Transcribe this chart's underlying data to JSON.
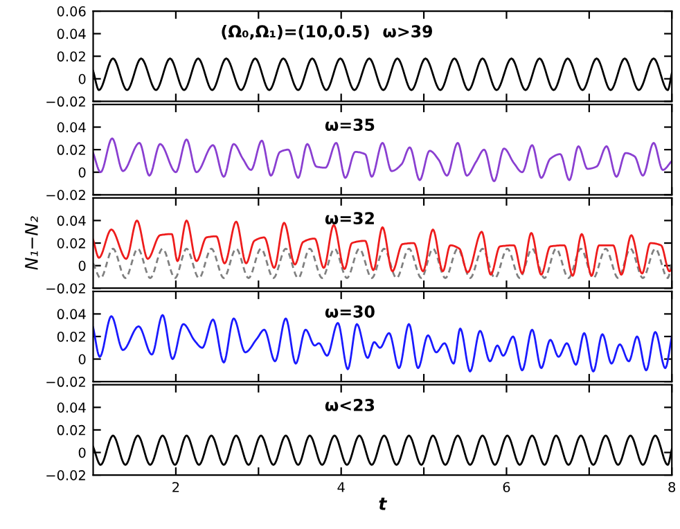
{
  "chart_data": [
    {
      "type": "line",
      "annotations": [
        "(Ω₀,Ω₁)=(10,0.5)",
        "ω>39"
      ],
      "xlim": [
        1,
        8
      ],
      "ylim": [
        -0.02,
        0.06
      ],
      "xticks": [
        2,
        {
          "value": 3,
          "label": null
        },
        4,
        {
          "value": 5,
          "label": null
        },
        6,
        {
          "value": 7,
          "label": null
        },
        8
      ],
      "yticks": [
        -0.02,
        0,
        0.02,
        0.04,
        0.06
      ],
      "tick_labels": "y",
      "series": [
        {
          "color": "#000000",
          "x": [
            1.0,
            1.07,
            1.24,
            1.41,
            1.58,
            1.76,
            1.93,
            2.1,
            2.27,
            2.44,
            2.61,
            2.79,
            2.96,
            3.13,
            3.3,
            3.48,
            3.65,
            3.82,
            3.99,
            4.16,
            4.34,
            4.51,
            4.68,
            4.85,
            5.02,
            5.2,
            5.37,
            5.54,
            5.71,
            5.88,
            6.06,
            6.23,
            6.4,
            6.57,
            6.74,
            6.92,
            7.09,
            7.26,
            7.43,
            7.6,
            7.78,
            7.95,
            8.0
          ],
          "values": [
            0.007,
            -0.01,
            0.018,
            -0.01,
            0.018,
            -0.01,
            0.018,
            -0.01,
            0.018,
            -0.01,
            0.018,
            -0.01,
            0.018,
            -0.01,
            0.018,
            -0.01,
            0.018,
            -0.01,
            0.018,
            -0.01,
            0.018,
            -0.01,
            0.018,
            -0.01,
            0.018,
            -0.01,
            0.018,
            -0.01,
            0.018,
            -0.01,
            0.018,
            -0.01,
            0.018,
            -0.01,
            0.018,
            -0.01,
            0.018,
            -0.01,
            0.018,
            -0.01,
            0.018,
            -0.01,
            0.005
          ]
        }
      ]
    },
    {
      "type": "line",
      "annotations": [
        "ω=35"
      ],
      "xlim": [
        1,
        8
      ],
      "ylim": [
        -0.02,
        0.06
      ],
      "xticks": [
        2,
        {
          "value": 3,
          "label": null
        },
        4,
        {
          "value": 5,
          "label": null
        },
        6,
        {
          "value": 7,
          "label": null
        },
        8
      ],
      "yticks": [
        -0.02,
        0,
        0.02,
        0.04
      ],
      "tick_labels": "y",
      "series": [
        {
          "color": "#8a3fd1",
          "x": [
            1.0,
            1.09,
            1.23,
            1.36,
            1.56,
            1.68,
            1.81,
            2.0,
            2.13,
            2.25,
            2.45,
            2.58,
            2.7,
            2.81,
            2.91,
            3.04,
            3.15,
            3.26,
            3.36,
            3.48,
            3.59,
            3.7,
            3.81,
            3.94,
            4.05,
            4.17,
            4.29,
            4.37,
            4.5,
            4.61,
            4.73,
            4.83,
            4.95,
            5.07,
            5.18,
            5.28,
            5.41,
            5.52,
            5.63,
            5.73,
            5.85,
            5.97,
            6.09,
            6.19,
            6.31,
            6.42,
            6.53,
            6.65,
            6.76,
            6.87,
            6.98,
            7.09,
            7.21,
            7.33,
            7.44,
            7.55,
            7.65,
            7.78,
            7.89,
            8.0
          ],
          "values": [
            0.017,
            0.0,
            0.03,
            0.001,
            0.026,
            -0.003,
            0.025,
            0.0,
            0.029,
            0.0,
            0.024,
            -0.004,
            0.025,
            0.012,
            0.002,
            0.028,
            -0.003,
            0.018,
            0.02,
            -0.005,
            0.025,
            0.005,
            0.004,
            0.026,
            -0.005,
            0.018,
            0.016,
            -0.004,
            0.026,
            0.001,
            0.007,
            0.022,
            -0.007,
            0.019,
            0.011,
            -0.003,
            0.026,
            -0.003,
            0.009,
            0.02,
            -0.008,
            0.021,
            0.008,
            0.0,
            0.024,
            -0.005,
            0.012,
            0.016,
            -0.007,
            0.023,
            0.003,
            0.005,
            0.023,
            -0.004,
            0.017,
            0.014,
            -0.003,
            0.026,
            0.002,
            0.01
          ]
        }
      ]
    },
    {
      "type": "line",
      "annotations": [
        "ω=32"
      ],
      "ylabel": "N₁−N₂",
      "xlim": [
        1,
        8
      ],
      "ylim": [
        -0.02,
        0.06
      ],
      "xticks": [
        2,
        {
          "value": 3,
          "label": null
        },
        4,
        {
          "value": 5,
          "label": null
        },
        6,
        {
          "value": 7,
          "label": null
        },
        8
      ],
      "yticks": [
        -0.02,
        0,
        0.02,
        0.04
      ],
      "tick_labels": "y",
      "series": [
        {
          "color": "#808080",
          "line_style": "dashed",
          "x": [
            1.0,
            1.09,
            1.24,
            1.39,
            1.54,
            1.69,
            1.84,
            1.99,
            2.13,
            2.28,
            2.43,
            2.58,
            2.73,
            2.88,
            3.03,
            3.18,
            3.33,
            3.48,
            3.62,
            3.77,
            3.92,
            4.07,
            4.22,
            4.37,
            4.52,
            4.67,
            4.82,
            4.97,
            5.11,
            5.26,
            5.41,
            5.56,
            5.71,
            5.86,
            6.01,
            6.16,
            6.31,
            6.46,
            6.6,
            6.75,
            6.9,
            7.05,
            7.2,
            7.35,
            7.5,
            7.65,
            7.8,
            7.95,
            8.0
          ],
          "values": [
            0.002,
            -0.011,
            0.015,
            -0.011,
            0.015,
            -0.011,
            0.015,
            -0.011,
            0.015,
            -0.011,
            0.015,
            -0.011,
            0.015,
            -0.011,
            0.015,
            -0.011,
            0.015,
            -0.011,
            0.015,
            -0.011,
            0.015,
            -0.011,
            0.015,
            -0.011,
            0.015,
            -0.011,
            0.015,
            -0.011,
            0.015,
            -0.011,
            0.015,
            -0.011,
            0.015,
            -0.011,
            0.015,
            -0.011,
            0.015,
            -0.011,
            0.015,
            -0.011,
            0.015,
            -0.011,
            0.015,
            -0.011,
            0.015,
            -0.011,
            0.015,
            -0.011,
            0.003
          ]
        },
        {
          "color": "#ee1c1c",
          "x": [
            1.0,
            1.07,
            1.22,
            1.4,
            1.53,
            1.66,
            1.81,
            1.95,
            2.02,
            2.13,
            2.25,
            2.37,
            2.49,
            2.59,
            2.73,
            2.85,
            2.95,
            3.07,
            3.19,
            3.31,
            3.44,
            3.54,
            3.68,
            3.79,
            3.91,
            4.04,
            4.13,
            4.29,
            4.39,
            4.5,
            4.62,
            4.74,
            4.88,
            4.99,
            5.11,
            5.23,
            5.32,
            5.43,
            5.53,
            5.7,
            5.81,
            5.92,
            6.09,
            6.19,
            6.3,
            6.42,
            6.53,
            6.7,
            6.8,
            6.91,
            7.03,
            7.12,
            7.29,
            7.39,
            7.51,
            7.64,
            7.74,
            7.87,
            7.97,
            8.0
          ],
          "values": [
            0.023,
            0.007,
            0.032,
            0.006,
            0.04,
            0.006,
            0.027,
            0.028,
            0.004,
            0.04,
            0.004,
            0.025,
            0.026,
            0.002,
            0.039,
            0.002,
            0.022,
            0.025,
            -0.002,
            0.038,
            0.001,
            0.021,
            0.024,
            -0.002,
            0.036,
            -0.003,
            0.02,
            0.022,
            -0.004,
            0.034,
            -0.005,
            0.019,
            0.02,
            -0.005,
            0.032,
            -0.005,
            0.018,
            0.015,
            -0.006,
            0.03,
            -0.008,
            0.017,
            0.018,
            -0.007,
            0.029,
            -0.008,
            0.017,
            0.018,
            -0.009,
            0.028,
            -0.009,
            0.018,
            0.018,
            -0.008,
            0.027,
            -0.007,
            0.02,
            0.018,
            -0.005,
            -0.003
          ]
        }
      ]
    },
    {
      "type": "line",
      "annotations": [
        "ω=30"
      ],
      "xlim": [
        1,
        8
      ],
      "ylim": [
        -0.02,
        0.06
      ],
      "xticks": [
        2,
        {
          "value": 3,
          "label": null
        },
        4,
        {
          "value": 5,
          "label": null
        },
        6,
        {
          "value": 7,
          "label": null
        },
        8
      ],
      "yticks": [
        -0.02,
        0,
        0.02,
        0.04
      ],
      "tick_labels": "y",
      "series": [
        {
          "color": "#1a1aff",
          "x": [
            1.0,
            1.08,
            1.22,
            1.36,
            1.55,
            1.71,
            1.84,
            1.96,
            2.09,
            2.23,
            2.32,
            2.45,
            2.58,
            2.7,
            2.84,
            2.98,
            3.07,
            3.2,
            3.33,
            3.45,
            3.57,
            3.68,
            3.73,
            3.83,
            3.96,
            4.08,
            4.19,
            4.32,
            4.4,
            4.47,
            4.58,
            4.7,
            4.82,
            4.93,
            5.05,
            5.15,
            5.25,
            5.36,
            5.44,
            5.56,
            5.68,
            5.8,
            5.89,
            5.96,
            6.08,
            6.19,
            6.31,
            6.42,
            6.53,
            6.63,
            6.73,
            6.84,
            6.94,
            7.05,
            7.16,
            7.27,
            7.37,
            7.48,
            7.58,
            7.69,
            7.8,
            7.92,
            8.0
          ],
          "values": [
            0.028,
            0.002,
            0.038,
            0.008,
            0.029,
            0.004,
            0.039,
            0.0,
            0.031,
            0.016,
            0.01,
            0.035,
            -0.003,
            0.036,
            0.006,
            0.018,
            0.026,
            -0.002,
            0.036,
            -0.004,
            0.026,
            0.012,
            0.014,
            0.003,
            0.032,
            -0.009,
            0.031,
            0.001,
            0.015,
            0.01,
            0.023,
            -0.008,
            0.031,
            -0.008,
            0.021,
            0.006,
            0.014,
            -0.004,
            0.027,
            -0.011,
            0.025,
            -0.002,
            0.012,
            0.003,
            0.02,
            -0.01,
            0.026,
            -0.008,
            0.017,
            0.002,
            0.014,
            -0.005,
            0.023,
            -0.011,
            0.022,
            -0.004,
            0.013,
            -0.002,
            0.02,
            -0.01,
            0.024,
            -0.008,
            0.02
          ]
        }
      ]
    },
    {
      "type": "line",
      "annotations": [
        "ω<23"
      ],
      "xlabel": "t",
      "xlim": [
        1,
        8
      ],
      "ylim": [
        -0.02,
        0.06
      ],
      "xticks": [
        2,
        {
          "value": 3,
          "label": null
        },
        4,
        {
          "value": 5,
          "label": null
        },
        6,
        {
          "value": 7,
          "label": null
        },
        8
      ],
      "yticks": [
        -0.02,
        0,
        0.02,
        0.04
      ],
      "series": [
        {
          "color": "#000000",
          "x": [
            1.0,
            1.09,
            1.24,
            1.39,
            1.54,
            1.69,
            1.84,
            1.99,
            2.13,
            2.28,
            2.43,
            2.58,
            2.73,
            2.88,
            3.03,
            3.18,
            3.33,
            3.48,
            3.62,
            3.77,
            3.92,
            4.07,
            4.22,
            4.37,
            4.52,
            4.67,
            4.82,
            4.97,
            5.11,
            5.26,
            5.41,
            5.56,
            5.71,
            5.86,
            6.01,
            6.16,
            6.31,
            6.46,
            6.6,
            6.75,
            6.9,
            7.05,
            7.2,
            7.35,
            7.5,
            7.65,
            7.8,
            7.95,
            8.0
          ],
          "values": [
            0.005,
            -0.011,
            0.015,
            -0.011,
            0.015,
            -0.011,
            0.015,
            -0.011,
            0.015,
            -0.011,
            0.015,
            -0.011,
            0.015,
            -0.011,
            0.015,
            -0.011,
            0.015,
            -0.011,
            0.015,
            -0.011,
            0.015,
            -0.011,
            0.015,
            -0.011,
            0.015,
            -0.011,
            0.015,
            -0.011,
            0.015,
            -0.011,
            0.015,
            -0.011,
            0.015,
            -0.011,
            0.015,
            -0.011,
            0.015,
            -0.011,
            0.015,
            -0.011,
            0.015,
            -0.011,
            0.015,
            -0.011,
            0.015,
            -0.011,
            0.015,
            -0.011,
            0.003
          ]
        }
      ]
    }
  ]
}
